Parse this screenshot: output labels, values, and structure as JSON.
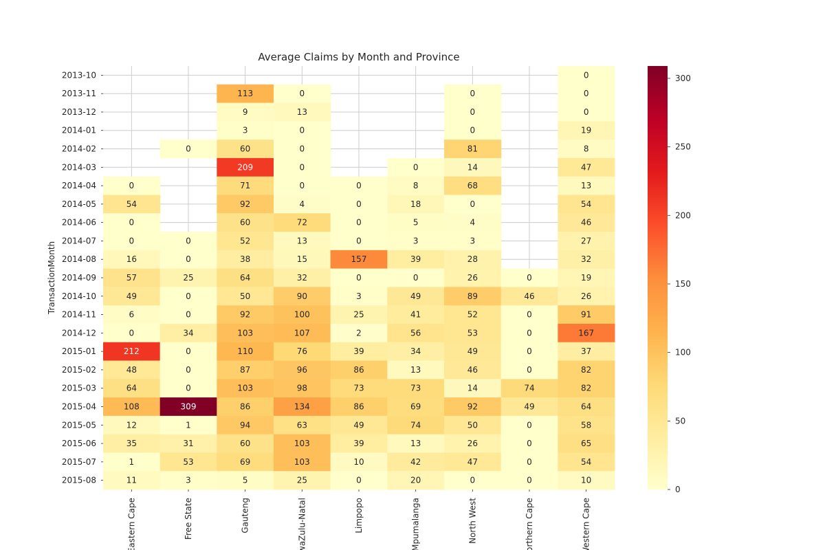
{
  "chart_data": {
    "type": "heatmap",
    "title": "Average Claims by Month and Province",
    "ylabel": "TransactionMonth",
    "xlabel": "",
    "rows": [
      "2013-10",
      "2013-11",
      "2013-12",
      "2014-01",
      "2014-02",
      "2014-03",
      "2014-04",
      "2014-05",
      "2014-06",
      "2014-07",
      "2014-08",
      "2014-09",
      "2014-10",
      "2014-11",
      "2014-12",
      "2015-01",
      "2015-02",
      "2015-03",
      "2015-04",
      "2015-05",
      "2015-06",
      "2015-07",
      "2015-08"
    ],
    "columns": [
      "Eastern Cape",
      "Free State",
      "Gauteng",
      "KwaZulu-Natal",
      "Limpopo",
      "Mpumalanga",
      "North West",
      "Northern Cape",
      "Western Cape"
    ],
    "values": [
      [
        null,
        null,
        null,
        null,
        null,
        null,
        null,
        null,
        0
      ],
      [
        null,
        null,
        113,
        0,
        null,
        null,
        0,
        null,
        0
      ],
      [
        null,
        null,
        9,
        13,
        null,
        null,
        0,
        null,
        0
      ],
      [
        null,
        null,
        3,
        0,
        null,
        null,
        0,
        null,
        19
      ],
      [
        null,
        0,
        60,
        0,
        null,
        null,
        81,
        null,
        8
      ],
      [
        null,
        null,
        209,
        0,
        null,
        0,
        14,
        null,
        47
      ],
      [
        0,
        null,
        71,
        0,
        0,
        8,
        68,
        null,
        13
      ],
      [
        54,
        null,
        92,
        4,
        0,
        18,
        0,
        null,
        54
      ],
      [
        0,
        null,
        60,
        72,
        0,
        5,
        4,
        null,
        46
      ],
      [
        0,
        0,
        52,
        13,
        0,
        3,
        3,
        null,
        27
      ],
      [
        16,
        0,
        38,
        15,
        157,
        39,
        28,
        null,
        32
      ],
      [
        57,
        25,
        64,
        32,
        0,
        0,
        26,
        0,
        19
      ],
      [
        49,
        0,
        50,
        90,
        3,
        49,
        89,
        46,
        26
      ],
      [
        6,
        0,
        92,
        100,
        25,
        41,
        52,
        0,
        91
      ],
      [
        0,
        34,
        103,
        107,
        2,
        56,
        53,
        0,
        167
      ],
      [
        212,
        0,
        110,
        76,
        39,
        34,
        49,
        0,
        37
      ],
      [
        48,
        0,
        87,
        96,
        86,
        13,
        46,
        0,
        82
      ],
      [
        64,
        0,
        103,
        98,
        73,
        73,
        14,
        74,
        82
      ],
      [
        108,
        309,
        86,
        134,
        86,
        69,
        92,
        49,
        64
      ],
      [
        12,
        1,
        94,
        63,
        49,
        74,
        50,
        0,
        58
      ],
      [
        35,
        31,
        60,
        103,
        39,
        13,
        26,
        0,
        65
      ],
      [
        1,
        53,
        69,
        103,
        10,
        42,
        47,
        0,
        54
      ],
      [
        11,
        3,
        5,
        25,
        0,
        20,
        0,
        0,
        10
      ]
    ],
    "colorbar": {
      "min": 0,
      "max": 309,
      "ticks": [
        0,
        50,
        100,
        150,
        200,
        250,
        300
      ],
      "colormap": "YlOrRd"
    },
    "grid": true
  }
}
